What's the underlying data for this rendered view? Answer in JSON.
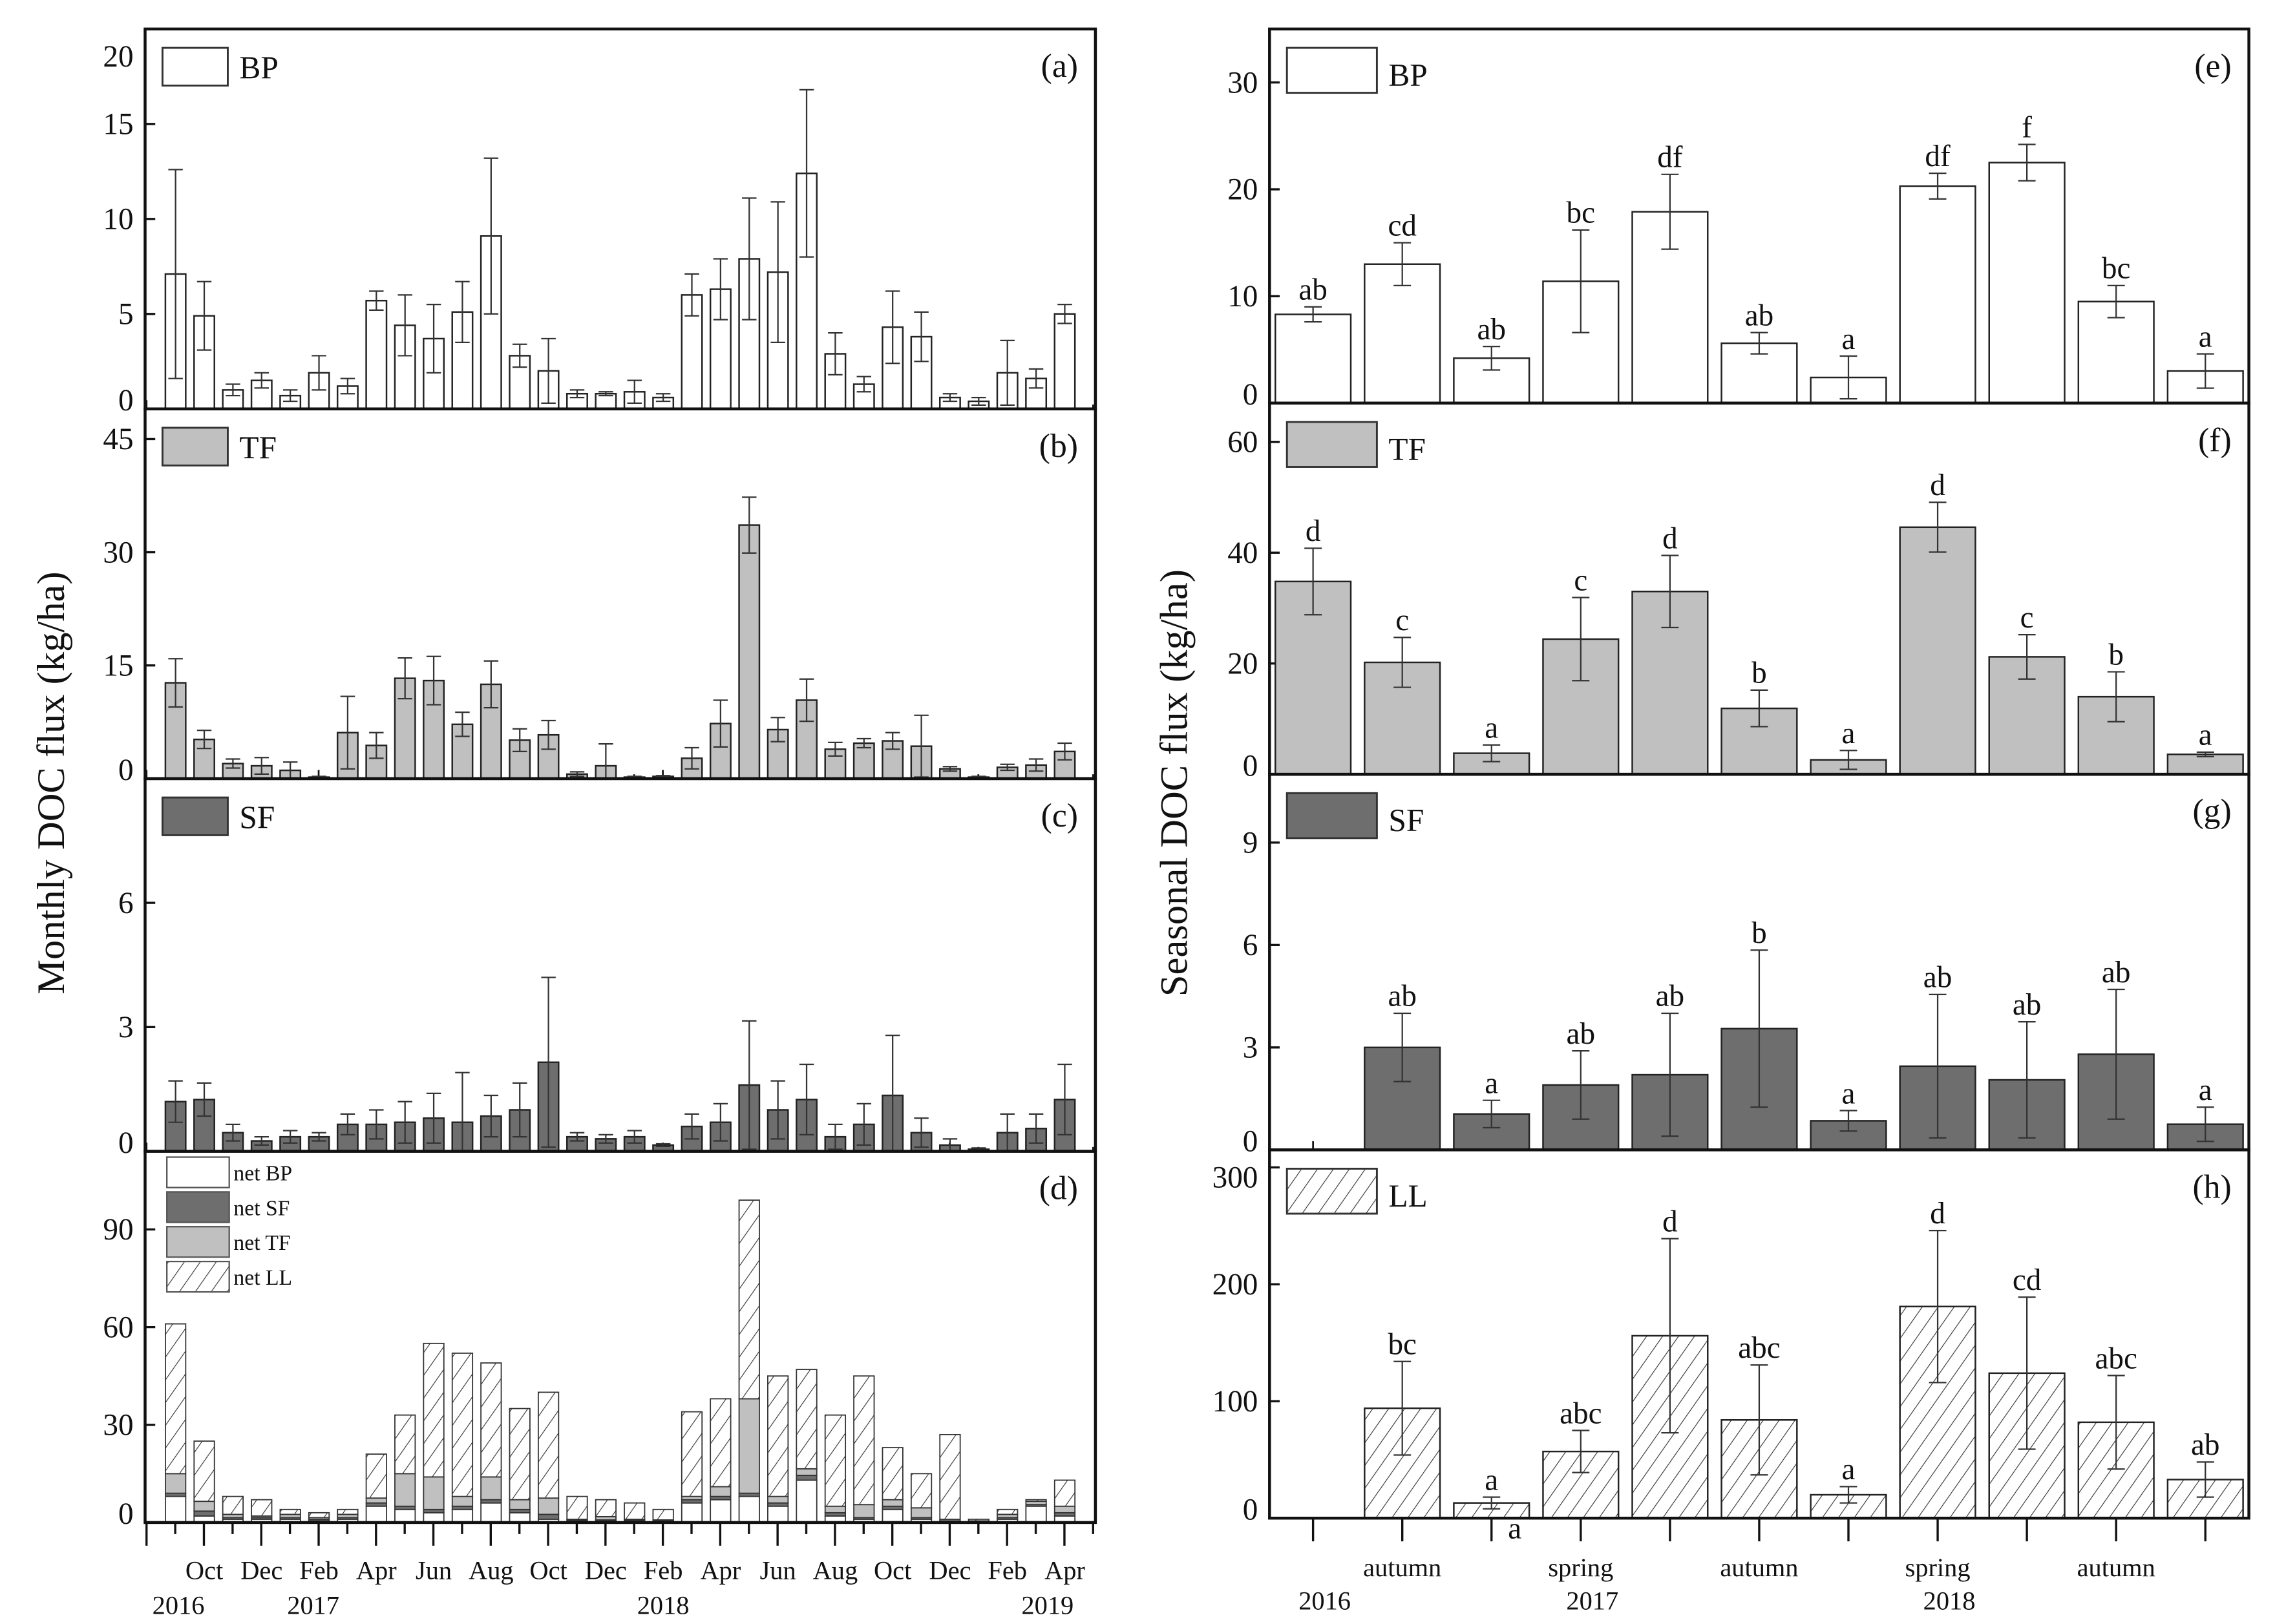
{
  "figure": {
    "left_ylabel": "Monthly DOC flux  (kg/ha)",
    "right_ylabel": "Seasonal DOC flux  (kg/ha)",
    "month_labels": [
      "Oct",
      "Dec",
      "Feb",
      "Apr",
      "Jun",
      "Aug",
      "Oct",
      "Dec",
      "Feb",
      "Apr",
      "Jun",
      "Aug",
      "Oct",
      "Dec",
      "Feb",
      "Apr"
    ],
    "month_years": [
      "2016",
      "2017",
      "2018",
      "2019"
    ],
    "season_labels": [
      "",
      "autumn",
      "",
      "spring",
      "",
      "autumn",
      "",
      "spring",
      "",
      "autumn",
      ""
    ],
    "season_years": [
      "2016",
      "2017",
      "2018"
    ]
  },
  "chart_data": [
    {
      "panel": "a",
      "type": "bar",
      "scale": "monthly",
      "label": "(a)",
      "legend": [
        "BP"
      ],
      "series": "BP",
      "ylim": [
        0,
        20
      ],
      "yticks": [
        0,
        5,
        10,
        15,
        20
      ],
      "values": [
        7.1,
        4.9,
        1.0,
        1.5,
        0.7,
        1.9,
        1.2,
        5.7,
        4.4,
        3.7,
        5.1,
        9.1,
        2.8,
        2.0,
        0.8,
        0.8,
        0.9,
        0.6,
        6.0,
        6.3,
        7.9,
        7.2,
        12.4,
        2.9,
        1.3,
        4.3,
        3.8,
        0.6,
        0.4,
        1.9,
        1.6,
        5.0
      ],
      "errors": [
        5.5,
        1.8,
        0.3,
        0.4,
        0.3,
        0.9,
        0.4,
        0.5,
        1.6,
        1.8,
        1.6,
        4.1,
        0.6,
        1.7,
        0.2,
        0.1,
        0.6,
        0.2,
        1.1,
        1.6,
        3.2,
        3.7,
        4.4,
        1.1,
        0.4,
        1.9,
        1.3,
        0.2,
        0.2,
        1.7,
        0.5,
        0.5
      ]
    },
    {
      "panel": "b",
      "type": "bar",
      "scale": "monthly",
      "label": "(b)",
      "legend": [
        "TF"
      ],
      "series": "TF",
      "ylim": [
        0,
        49
      ],
      "yticks": [
        0,
        15,
        30,
        45
      ],
      "values": [
        12.7,
        5.2,
        2.0,
        1.7,
        1.1,
        0.2,
        6.1,
        4.4,
        13.3,
        13.0,
        7.2,
        12.5,
        5.1,
        5.8,
        0.6,
        1.7,
        0.2,
        0.3,
        2.7,
        7.3,
        33.6,
        6.5,
        10.4,
        3.9,
        4.7,
        5.0,
        4.3,
        1.3,
        0.2,
        1.5,
        1.8,
        3.6
      ],
      "errors": [
        3.2,
        1.2,
        0.6,
        1.1,
        1.1,
        0.1,
        4.8,
        1.7,
        2.7,
        3.2,
        1.6,
        3.1,
        1.5,
        1.9,
        0.3,
        2.9,
        0.1,
        0.1,
        1.4,
        3.1,
        3.7,
        1.6,
        2.8,
        0.9,
        0.6,
        1.1,
        4.1,
        0.3,
        0.1,
        0.4,
        0.8,
        1.1
      ]
    },
    {
      "panel": "c",
      "type": "bar",
      "scale": "monthly",
      "label": "(c)",
      "legend": [
        "SF"
      ],
      "series": "SF",
      "ylim": [
        0,
        9
      ],
      "yticks": [
        0,
        3,
        6
      ],
      "values": [
        1.2,
        1.25,
        0.45,
        0.25,
        0.35,
        0.35,
        0.65,
        0.65,
        0.7,
        0.8,
        0.7,
        0.85,
        1.0,
        2.15,
        0.35,
        0.3,
        0.35,
        0.15,
        0.6,
        0.7,
        1.6,
        1.0,
        1.25,
        0.35,
        0.65,
        1.35,
        0.45,
        0.15,
        0.05,
        0.45,
        0.55,
        1.25
      ],
      "errors": [
        0.5,
        0.4,
        0.2,
        0.1,
        0.15,
        0.1,
        0.25,
        0.35,
        0.5,
        0.6,
        1.2,
        0.5,
        0.65,
        2.05,
        0.1,
        0.1,
        0.15,
        0.03,
        0.3,
        0.45,
        1.55,
        0.7,
        0.85,
        0.3,
        0.5,
        1.45,
        0.35,
        0.15,
        0.03,
        0.45,
        0.35,
        0.85
      ]
    },
    {
      "panel": "d",
      "type": "stacked-bar",
      "scale": "monthly",
      "label": "(d)",
      "legend": [
        "net BP",
        "net SF",
        "net TF",
        "net LL"
      ],
      "ylim": [
        0,
        114
      ],
      "yticks": [
        0,
        30,
        60,
        90
      ],
      "stack": [
        {
          "name": "net BP",
          "series": "BP",
          "values": [
            8,
            2,
            1,
            1,
            1,
            0.5,
            1,
            5,
            4,
            3,
            4,
            6,
            3,
            1,
            0.5,
            0.5,
            0.5,
            0.5,
            6,
            7,
            8,
            5,
            13,
            2,
            1,
            4,
            1,
            0.3,
            0.2,
            1,
            5,
            2
          ]
        },
        {
          "name": "net SF",
          "series": "SF",
          "values": [
            1,
            1.5,
            0.5,
            0.5,
            0.5,
            0.5,
            0.5,
            1,
            1,
            1,
            1,
            1,
            1,
            1.5,
            0.3,
            0.3,
            0.3,
            0.2,
            1,
            1,
            1,
            1,
            1.5,
            1,
            0.5,
            1,
            0.5,
            0.2,
            0.1,
            0.5,
            0.5,
            1
          ]
        },
        {
          "name": "net TF",
          "series": "TF",
          "values": [
            6,
            3,
            1,
            0.5,
            1,
            0.5,
            1,
            1.5,
            10,
            10,
            3,
            7,
            3,
            5,
            0.2,
            1,
            0.2,
            0.1,
            1,
            3,
            29,
            2,
            2,
            2,
            4,
            2,
            3,
            0.5,
            0.2,
            1,
            1,
            2
          ]
        },
        {
          "name": "net LL",
          "series": "LL",
          "values": [
            46,
            18.5,
            5.5,
            5,
            1.5,
            1.5,
            1.5,
            13.5,
            18,
            41,
            44,
            35,
            28,
            32.5,
            7,
            5.2,
            5,
            3.2,
            26,
            27,
            61,
            37,
            30.5,
            28,
            39.5,
            16,
            10.5,
            26,
            0.5,
            1.5,
            0.5,
            8
          ]
        }
      ]
    },
    {
      "panel": "e",
      "type": "bar",
      "scale": "seasonal",
      "label": "(e)",
      "legend": [
        "BP"
      ],
      "series": "BP",
      "ylim": [
        0,
        35
      ],
      "yticks": [
        0,
        10,
        20,
        30
      ],
      "values": [
        8.3,
        13.0,
        4.2,
        11.4,
        17.9,
        5.6,
        2.4,
        20.3,
        22.5,
        9.5,
        3.0
      ],
      "errors": [
        0.7,
        2.0,
        1.1,
        4.8,
        3.5,
        1.0,
        2.0,
        1.2,
        1.7,
        1.5,
        1.6
      ],
      "letters": [
        "ab",
        "cd",
        "ab",
        "bc",
        "df",
        "ab",
        "a",
        "df",
        "f",
        "bc",
        "a"
      ]
    },
    {
      "panel": "f",
      "type": "bar",
      "scale": "seasonal",
      "label": "(f)",
      "legend": [
        "TF"
      ],
      "series": "TF",
      "ylim": [
        0,
        67
      ],
      "yticks": [
        0,
        20,
        40,
        60
      ],
      "values": [
        34.8,
        20.2,
        3.8,
        24.4,
        33.0,
        11.9,
        2.6,
        44.6,
        21.2,
        14.0,
        3.6
      ],
      "errors": [
        6.0,
        4.5,
        1.5,
        7.5,
        6.5,
        3.3,
        1.7,
        4.5,
        4.0,
        4.5,
        0.4
      ],
      "letters": [
        "d",
        "c",
        "a",
        "c",
        "d",
        "b",
        "a",
        "d",
        "c",
        "b",
        "a"
      ]
    },
    {
      "panel": "g",
      "type": "bar",
      "scale": "seasonal",
      "label": "(g)",
      "legend": [
        "SF"
      ],
      "series": "SF",
      "ylim": [
        0,
        11
      ],
      "yticks": [
        0,
        3,
        6,
        9
      ],
      "values": [
        null,
        3.0,
        1.05,
        1.9,
        2.2,
        3.55,
        0.85,
        2.45,
        2.05,
        2.8,
        0.75
      ],
      "errors": [
        null,
        1.0,
        0.4,
        1.0,
        1.8,
        2.3,
        0.3,
        2.1,
        1.7,
        1.9,
        0.5
      ],
      "letters": [
        "",
        "ab",
        "a",
        "ab",
        "ab",
        "b",
        "a",
        "ab",
        "ab",
        "ab",
        "a"
      ]
    },
    {
      "panel": "h",
      "type": "bar",
      "scale": "seasonal",
      "label": "(h)",
      "legend": [
        "LL"
      ],
      "series": "LL",
      "ylim": [
        0,
        315
      ],
      "yticks": [
        0,
        100,
        200,
        300
      ],
      "values": [
        null,
        94,
        13,
        57,
        156,
        84,
        20,
        181,
        124,
        82,
        33
      ],
      "errors": [
        null,
        40,
        5,
        18,
        83,
        47,
        7,
        65,
        65,
        40,
        15
      ],
      "letters": [
        "",
        "bc",
        "a",
        "abc",
        "d",
        "abc",
        "a",
        "d",
        "cd",
        "abc",
        "ab"
      ],
      "extra_letter": "a"
    }
  ],
  "colors": {
    "BP": "#ffffff",
    "TF": "#c0c0c0",
    "SF": "#6e6e6e",
    "LL": "hatch",
    "axis": "#111111"
  }
}
